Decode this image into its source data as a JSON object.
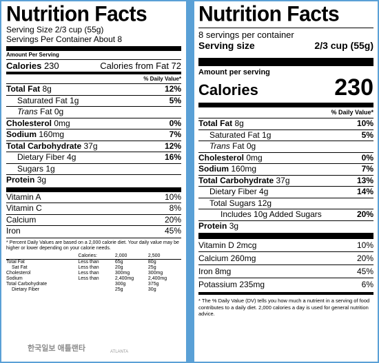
{
  "old_label": {
    "title": "Nutrition Facts",
    "serving_size": "Serving Size 2/3 cup (55g)",
    "servings_per_container": "Servings Per Container About 8",
    "amount_per_serving": "Amount Per Serving",
    "calories_label": "Calories",
    "calories_value": "230",
    "calories_from_fat": "Calories from Fat 72",
    "dv_header": "% Daily Value*",
    "nutrients": [
      {
        "name": "Total Fat",
        "amount": "8g",
        "dv": "12%"
      },
      {
        "name": "Saturated Fat",
        "amount": "1g",
        "dv": "5%"
      },
      {
        "name": "Trans",
        "amount": "Fat 0g",
        "dv": ""
      },
      {
        "name": "Cholesterol",
        "amount": "0mg",
        "dv": "0%"
      },
      {
        "name": "Sodium",
        "amount": "160mg",
        "dv": "7%"
      },
      {
        "name": "Total Carbohydrate",
        "amount": "37g",
        "dv": "12%"
      },
      {
        "name": "Dietary Fiber",
        "amount": "4g",
        "dv": "16%"
      },
      {
        "name": "Sugars",
        "amount": "1g",
        "dv": ""
      },
      {
        "name": "Protein",
        "amount": "3g",
        "dv": ""
      }
    ],
    "vitamins": [
      {
        "name": "Vitamin A",
        "dv": "10%"
      },
      {
        "name": "Vitamin C",
        "dv": "8%"
      },
      {
        "name": "Calcium",
        "dv": "20%"
      },
      {
        "name": "Iron",
        "dv": "45%"
      }
    ],
    "footnote": "* Percent Daily Values are based on a 2,000 calorie diet. Your daily value may be higher or lower depending on your calorie needs.",
    "dv_table": {
      "header": [
        "",
        "Calories:",
        "2,000",
        "2,500"
      ],
      "rows": [
        [
          "Total Fat",
          "Less than",
          "65g",
          "80g"
        ],
        [
          "Sat Fat",
          "Less than",
          "20g",
          "25g"
        ],
        [
          "Cholesterol",
          "Less than",
          "300mg",
          "300mg"
        ],
        [
          "Sodium",
          "Less than",
          "2,400mg",
          "2,400mg"
        ],
        [
          "Total Carbohydrate",
          "",
          "300g",
          "375g"
        ],
        [
          "Dietary Fiber",
          "",
          "25g",
          "30g"
        ]
      ]
    }
  },
  "new_label": {
    "title": "Nutrition Facts",
    "servings_per_container": "8 servings per container",
    "serving_size_label": "Serving size",
    "serving_size_value": "2/3 cup (55g)",
    "amount_per_serving": "Amount per serving",
    "calories_label": "Calories",
    "calories_value": "230",
    "dv_header": "% Daily Value*",
    "nutrients": [
      {
        "name": "Total Fat",
        "amount": "8g",
        "dv": "10%"
      },
      {
        "name": "Saturated Fat",
        "amount": "1g",
        "dv": "5%"
      },
      {
        "name": "Trans",
        "amount": "Fat 0g",
        "dv": ""
      },
      {
        "name": "Cholesterol",
        "amount": "0mg",
        "dv": "0%"
      },
      {
        "name": "Sodium",
        "amount": "160mg",
        "dv": "7%"
      },
      {
        "name": "Total Carbohydrate",
        "amount": "37g",
        "dv": "13%"
      },
      {
        "name": "Dietary Fiber",
        "amount": "4g",
        "dv": "14%"
      },
      {
        "name": "Total Sugars",
        "amount": "12g",
        "dv": ""
      },
      {
        "name": "Includes 10g Added Sugars",
        "amount": "",
        "dv": "20%"
      },
      {
        "name": "Protein",
        "amount": "3g",
        "dv": ""
      }
    ],
    "vitamins": [
      {
        "name": "Vitamin D 2mcg",
        "dv": "10%"
      },
      {
        "name": "Calcium 260mg",
        "dv": "20%"
      },
      {
        "name": "Iron 8mg",
        "dv": "45%"
      },
      {
        "name": "Potassium 235mg",
        "dv": "6%"
      }
    ],
    "footnote": "* The % Daily Value (DV) tells you how much a nutrient in a serving of food contributes to a daily diet. 2,000 calories a day is used for general nutrition advice."
  },
  "watermark": {
    "text": "한국일보 애틀랜타",
    "sub": "ATLANTA"
  }
}
